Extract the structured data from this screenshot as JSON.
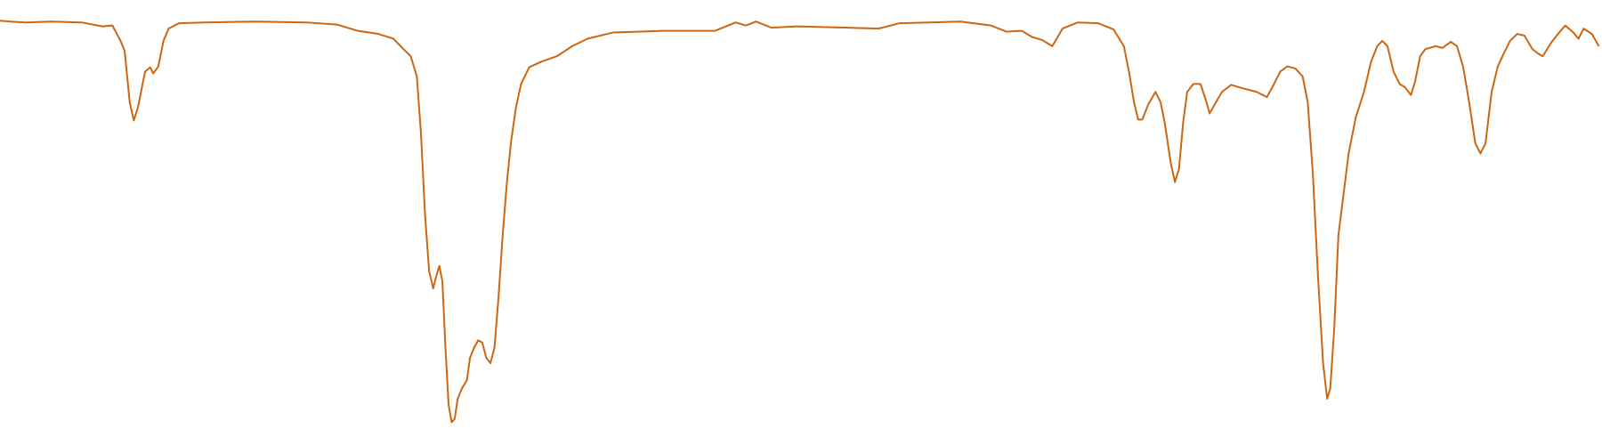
{
  "chart_data": {
    "type": "line",
    "color": "#cc6611",
    "x": [
      0,
      10,
      25,
      50,
      80,
      100,
      110,
      118,
      122,
      127,
      131,
      135,
      142,
      147,
      150,
      155,
      160,
      165,
      175,
      200,
      250,
      300,
      330,
      350,
      370,
      385,
      395,
      402,
      408,
      412,
      416,
      420,
      424,
      427,
      430,
      433,
      436,
      439,
      442,
      445,
      448,
      452,
      457,
      460,
      464,
      468,
      472,
      476,
      480,
      484,
      488,
      492,
      496,
      500,
      505,
      510,
      518,
      530,
      545,
      560,
      575,
      600,
      650,
      700,
      720,
      730,
      740,
      755,
      780,
      830,
      860,
      880,
      940,
      970,
      985,
      1000,
      1010,
      1020,
      1030,
      1040,
      1055,
      1075,
      1090,
      1100,
      1105,
      1110,
      1114,
      1118,
      1124,
      1131,
      1136,
      1140,
      1146,
      1150,
      1154,
      1158,
      1162,
      1168,
      1175,
      1180,
      1184,
      1190,
      1196,
      1205,
      1215,
      1230,
      1240,
      1247,
      1253,
      1260,
      1268,
      1275,
      1280,
      1285,
      1290,
      1295,
      1299,
      1302,
      1306,
      1310,
      1315,
      1320,
      1327,
      1335,
      1342,
      1348,
      1353,
      1358,
      1364,
      1370,
      1375,
      1381,
      1385,
      1390,
      1395,
      1405,
      1412,
      1420,
      1426,
      1432,
      1438,
      1444,
      1449,
      1454,
      1460,
      1466,
      1472,
      1478,
      1485,
      1492,
      1500,
      1505,
      1510,
      1518,
      1525,
      1532,
      1540,
      1545,
      1550,
      1558,
      1565
    ],
    "values": [
      95.3,
      95.1,
      94.9,
      95.1,
      94.9,
      94.0,
      94.2,
      90.7,
      88.4,
      76.7,
      72.6,
      75.6,
      83.7,
      84.7,
      83.3,
      84.9,
      90.7,
      93.5,
      94.7,
      94.9,
      95.1,
      94.9,
      94.4,
      93.0,
      92.3,
      91.2,
      88.8,
      87.2,
      82.6,
      69.8,
      51.2,
      38.4,
      34.4,
      37.2,
      39.5,
      36.0,
      20.9,
      8.1,
      4.0,
      4.7,
      9.3,
      11.6,
      13.5,
      18.6,
      20.9,
      22.6,
      22.1,
      18.6,
      17.4,
      20.9,
      32.6,
      46.5,
      58.1,
      67.4,
      75.6,
      80.9,
      84.7,
      86.0,
      87.2,
      89.5,
      91.2,
      92.6,
      93.0,
      93.0,
      94.9,
      94.2,
      95.1,
      93.7,
      94.0,
      93.7,
      93.5,
      94.7,
      95.1,
      94.2,
      92.8,
      93.0,
      91.6,
      90.9,
      89.5,
      93.5,
      94.9,
      94.7,
      93.3,
      89.5,
      83.7,
      76.7,
      72.8,
      72.8,
      76.3,
      79.1,
      76.7,
      72.1,
      62.8,
      58.6,
      61.6,
      72.1,
      79.1,
      80.9,
      80.9,
      77.4,
      74.2,
      76.7,
      79.1,
      80.7,
      80.0,
      79.1,
      77.9,
      80.9,
      83.7,
      84.9,
      84.4,
      82.6,
      76.7,
      60.5,
      37.2,
      17.4,
      9.3,
      11.6,
      25.6,
      46.5,
      55.8,
      65.1,
      73.3,
      79.1,
      86.0,
      89.5,
      90.7,
      89.5,
      83.7,
      80.9,
      80.2,
      78.4,
      81.4,
      87.2,
      88.8,
      89.5,
      89.1,
      90.5,
      89.5,
      84.9,
      76.7,
      67.4,
      65.1,
      67.4,
      79.1,
      84.9,
      87.9,
      90.7,
      92.3,
      91.9,
      88.8,
      87.9,
      87.2,
      90.2,
      92.3,
      94.2,
      92.6,
      91.2,
      93.5,
      92.3,
      89.5
    ],
    "xlim": [
      0,
      1568
    ],
    "ylim": [
      0,
      100
    ]
  }
}
